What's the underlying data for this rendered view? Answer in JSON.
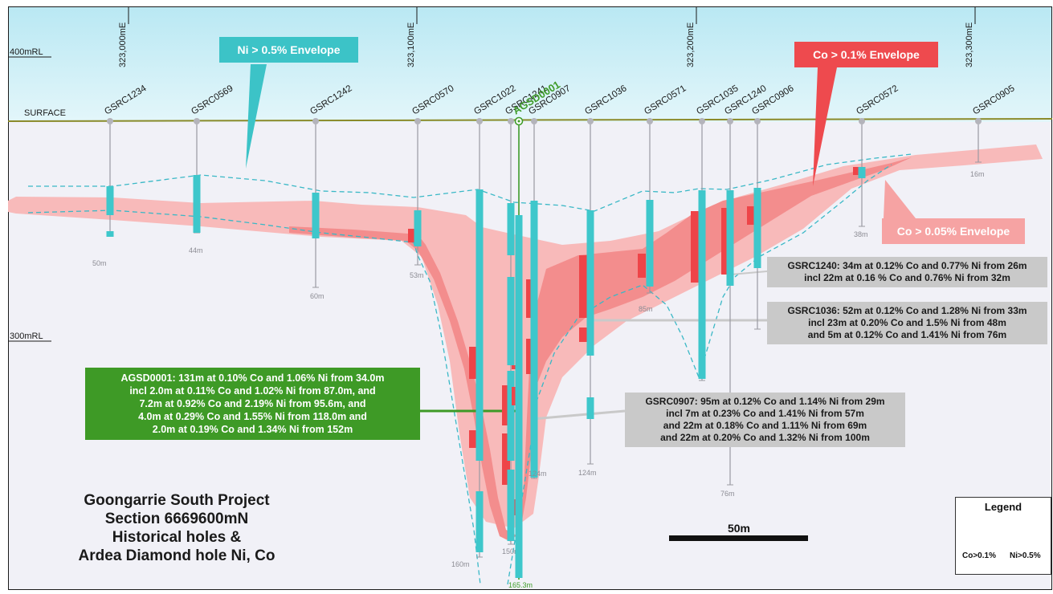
{
  "eastings": [
    {
      "label": "323,000mE",
      "value": 323000
    },
    {
      "label": "323,100mE",
      "value": 323100
    },
    {
      "label": "323,200mE",
      "value": 323200
    },
    {
      "label": "323,300mE",
      "value": 323300
    }
  ],
  "levels": [
    {
      "label": "400mRL"
    },
    {
      "label": "300mRL"
    }
  ],
  "surface_label": "SURFACE",
  "holes": [
    {
      "name": "GSRC1234",
      "depth_label": "50m"
    },
    {
      "name": "GSRC0569",
      "depth_label": "44m"
    },
    {
      "name": "GSRC1242",
      "depth_label": "60m"
    },
    {
      "name": "GSRC0570",
      "depth_label": "53m"
    },
    {
      "name": "GSRC1022",
      "depth_label": "160m"
    },
    {
      "name": "GSRC1241",
      "depth_label": "150m"
    },
    {
      "name": "AGSD0001",
      "depth_label": "165.3m",
      "highlight": true
    },
    {
      "name": "GSRC0907",
      "depth_label": "124m"
    },
    {
      "name": "GSRC1036",
      "depth_label": "124m"
    },
    {
      "name": "GSRC0571",
      "depth_label": "85m"
    },
    {
      "name": "GSRC1035",
      "depth_label": "132m"
    },
    {
      "name": "GSRC1240",
      "depth_label": "76m"
    },
    {
      "name": "GSRC0906",
      "depth_label": ""
    },
    {
      "name": "GSRC0572",
      "depth_label": "38m"
    },
    {
      "name": "GSRC0905",
      "depth_label": "16m"
    }
  ],
  "envelopes": {
    "ni": "Ni > 0.5% Envelope",
    "co_high": "Co > 0.1% Envelope",
    "co_low": "Co > 0.05% Envelope"
  },
  "callouts": {
    "gsrc1240": [
      "GSRC1240: 34m at 0.12% Co and 0.77% Ni from 26m",
      "incl 22m at 0.16 % Co and 0.76% Ni from 32m"
    ],
    "gsrc1036": [
      "GSRC1036: 52m at 0.12% Co and 1.28% Ni from 33m",
      "incl 23m at 0.20% Co and 1.5% Ni from 48m",
      "and 5m at 0.12% Co and 1.41% Ni from 76m"
    ],
    "gsrc0907": [
      "GSRC0907: 95m at 0.12% Co and 1.14% Ni from 29m",
      "incl 7m at 0.23% Co and 1.41% Ni from 57m",
      "and 22m at 0.18% Co and 1.11% Ni from 69m",
      "and 22m at 0.20% Co and 1.32% Ni from 100m"
    ],
    "agsd0001": [
      "AGSD0001: 131m at 0.10% Co and 1.06% Ni from 34.0m",
      "incl 2.0m at 0.11% Co and 1.02% Ni from 87.0m, and",
      "7.2m at 0.92% Co and 2.19% Ni from 95.6m, and",
      "4.0m at 0.29% Co and 1.55% Ni from 118.0m and",
      "2.0m at 0.19% Co and 1.34% Ni from 152m"
    ]
  },
  "title_lines": [
    "Goongarrie South Project",
    "Section 6669600mN",
    "Historical holes &",
    "Ardea Diamond hole Ni, Co"
  ],
  "scale_label": "50m",
  "legend": {
    "title": "Legend",
    "co_label": "Co>0.1%",
    "ni_label": "Ni>0.5%"
  },
  "colors": {
    "sky": "#c4ecf4",
    "ground": "#f1f1f7",
    "surface_line": "#8b8a2a",
    "co_low": "#f8b9b9",
    "co_high": "#f28585",
    "co_intercept": "#ee4448",
    "ni_intercept": "#3ec7cb",
    "agsd_highlight": "#3f9c2a"
  }
}
